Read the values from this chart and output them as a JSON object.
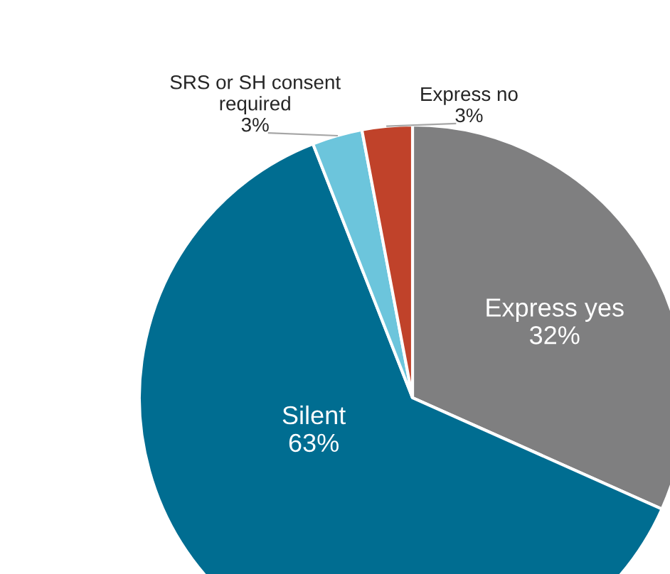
{
  "chart_data": {
    "type": "pie",
    "categories": [
      "Express yes",
      "Silent",
      "SRS or SH consent\nrequired",
      "Express no"
    ],
    "values": [
      32,
      63,
      3,
      3
    ],
    "value_labels": [
      "32%",
      "63%",
      "3%",
      "3%"
    ],
    "colors": [
      "#7f7f80",
      "#006d91",
      "#6cc5dc",
      "#c0422a"
    ],
    "legend": false
  }
}
